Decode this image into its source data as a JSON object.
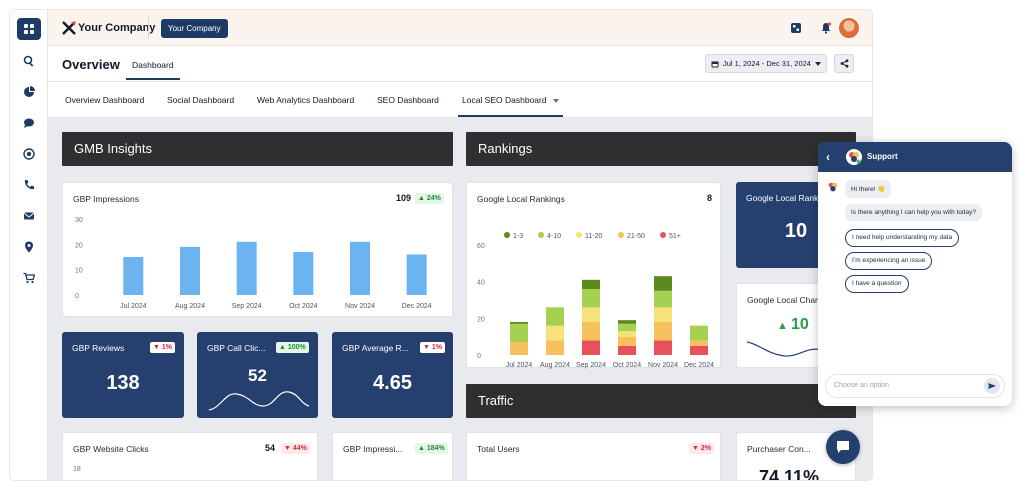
{
  "topbar": {
    "company_name": "Your Company",
    "company_chip": "Your Company"
  },
  "header": {
    "title": "Overview",
    "tab": "Dashboard",
    "date_range": "Jul 1, 2024 - Dec 31, 2024"
  },
  "subnav": [
    "Overview Dashboard",
    "Social Dashboard",
    "Web Analytics Dashboard",
    "SEO Dashboard",
    "Local SEO Dashboard"
  ],
  "sections": {
    "gmb": "GMB Insights",
    "rankings": "Rankings",
    "traffic": "Traffic"
  },
  "gbp_impressions": {
    "title": "GBP Impressions",
    "value": "109",
    "change": "24%",
    "chart_data": {
      "type": "bar",
      "categories": [
        "Jul 2024",
        "Aug 2024",
        "Sep 2024",
        "Oct 2024",
        "Nov 2024",
        "Dec 2024"
      ],
      "values": [
        15,
        19,
        21,
        17,
        21,
        16
      ],
      "ylim": [
        0,
        30
      ],
      "yticks": [
        "30",
        "20",
        "10",
        "0"
      ],
      "color": "#6cb4f0"
    }
  },
  "google_local_rankings": {
    "title": "Google Local Rankings",
    "value": "8",
    "chart_data": {
      "type": "bar",
      "stacked": true,
      "categories": [
        "Jul 2024",
        "Aug 2024",
        "Sep 2024",
        "Oct 2024",
        "Nov 2024",
        "Dec 2024"
      ],
      "ylim": [
        0,
        60
      ],
      "yticks": [
        "60",
        "40",
        "20",
        "0"
      ],
      "series": [
        {
          "name": "51+",
          "color": "#e8505b",
          "values": [
            0,
            0,
            8,
            5,
            8,
            5
          ]
        },
        {
          "name": "21-50",
          "color": "#f6c05c",
          "values": [
            7,
            8,
            10,
            5,
            10,
            3
          ]
        },
        {
          "name": "11-20",
          "color": "#f6e27a",
          "values": [
            0,
            8,
            8,
            3,
            8,
            0
          ]
        },
        {
          "name": "4-10",
          "color": "#a6d04f",
          "values": [
            10,
            10,
            10,
            4,
            9,
            8
          ]
        },
        {
          "name": "1-3",
          "color": "#5c8a1e",
          "values": [
            1,
            0,
            5,
            2,
            8,
            0
          ]
        }
      ],
      "legend_order": [
        "1-3",
        "4-10",
        "11-20",
        "21-50",
        "51+"
      ]
    }
  },
  "kpis": [
    {
      "title": "GBP Reviews",
      "value": "138",
      "change": "1%",
      "direction": "down"
    },
    {
      "title": "GBP Call Clic...",
      "value": "52",
      "change": "100%",
      "direction": "up"
    },
    {
      "title": "GBP Average R...",
      "value": "4.65",
      "change": "1%",
      "direction": "down"
    }
  ],
  "google_local_rank_card": {
    "title": "Google Local Rank",
    "value": "10"
  },
  "google_local_change_card": {
    "title": "Google Local Chan",
    "value": "10"
  },
  "bottom_cards": [
    {
      "title": "GBP Website Clicks",
      "value": "54",
      "change": "44%",
      "direction": "down",
      "tick": "18"
    },
    {
      "title": "GBP Impressi...",
      "change": "184%",
      "direction": "up"
    },
    {
      "title": "Total Users",
      "change": "2%",
      "direction": "down"
    },
    {
      "title": "Purchaser Con...",
      "value": "74.11%"
    }
  ],
  "chat": {
    "title": "Support",
    "greeting": "Hi there! 👋",
    "question": "Is there anything I can help you with today?",
    "options": [
      "I need help understanding my data",
      "I’m experiencing an issue",
      "I have a question"
    ],
    "input_placeholder": "Choose an option"
  }
}
